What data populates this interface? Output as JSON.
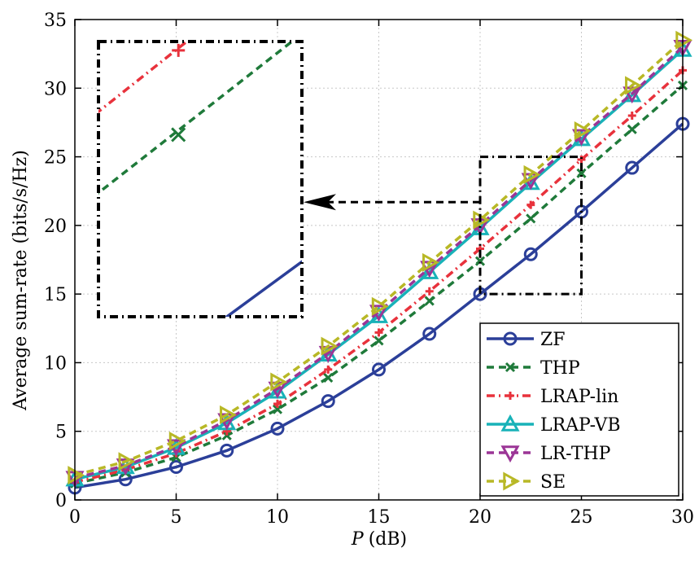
{
  "chart_data": {
    "type": "line",
    "title": "",
    "xlabel_var": "P",
    "xlabel_unit": "(dB)",
    "ylabel": "Average sum-rate (bits/s/Hz)",
    "xlim": [
      0,
      30
    ],
    "ylim": [
      0,
      35
    ],
    "xticks": [
      0,
      5,
      10,
      15,
      20,
      25,
      30
    ],
    "yticks": [
      0,
      5,
      10,
      15,
      20,
      25,
      30,
      35
    ],
    "grid": true,
    "legend_position": "bottom-right",
    "x": [
      0,
      2.5,
      5,
      7.5,
      10,
      12.5,
      15,
      17.5,
      20,
      22.5,
      25,
      27.5,
      30
    ],
    "series": [
      {
        "name": "ZF",
        "color": "#2b3f99",
        "dash": "solid",
        "marker": "circle",
        "values": [
          0.9,
          1.5,
          2.4,
          3.6,
          5.2,
          7.2,
          9.5,
          12.1,
          15.0,
          17.9,
          21.0,
          24.2,
          27.4
        ]
      },
      {
        "name": "THP",
        "color": "#1f7a3a",
        "dash": "dashed",
        "marker": "x",
        "values": [
          1.2,
          2.0,
          3.1,
          4.7,
          6.6,
          8.9,
          11.6,
          14.5,
          17.4,
          20.5,
          23.8,
          27.0,
          30.2
        ]
      },
      {
        "name": "LRAP-lin",
        "color": "#e8323c",
        "dash": "dashdot",
        "marker": "plus",
        "values": [
          1.3,
          2.2,
          3.4,
          5.0,
          7.0,
          9.5,
          12.2,
          15.2,
          18.3,
          21.5,
          24.8,
          28.0,
          31.3
        ]
      },
      {
        "name": "LRAP-VB",
        "color": "#18b2b8",
        "dash": "solid",
        "marker": "triangle-up",
        "values": [
          1.5,
          2.4,
          3.8,
          5.6,
          7.9,
          10.6,
          13.4,
          16.6,
          19.8,
          23.1,
          26.3,
          29.5,
          32.8
        ]
      },
      {
        "name": "LR-THP",
        "color": "#9b3596",
        "dash": "dashed",
        "marker": "triangle-down",
        "values": [
          1.6,
          2.5,
          3.9,
          5.8,
          8.1,
          10.7,
          13.7,
          16.9,
          20.0,
          23.3,
          26.5,
          29.6,
          33.0
        ]
      },
      {
        "name": "SE",
        "color": "#b8b826",
        "dash": "dashed",
        "marker": "triangle-right",
        "values": [
          1.8,
          2.8,
          4.3,
          6.2,
          8.6,
          11.2,
          14.1,
          17.3,
          20.4,
          23.7,
          26.9,
          30.2,
          33.5
        ]
      }
    ],
    "zoom_box": {
      "xlim": [
        20,
        25
      ],
      "ylim": [
        15,
        25
      ]
    }
  }
}
